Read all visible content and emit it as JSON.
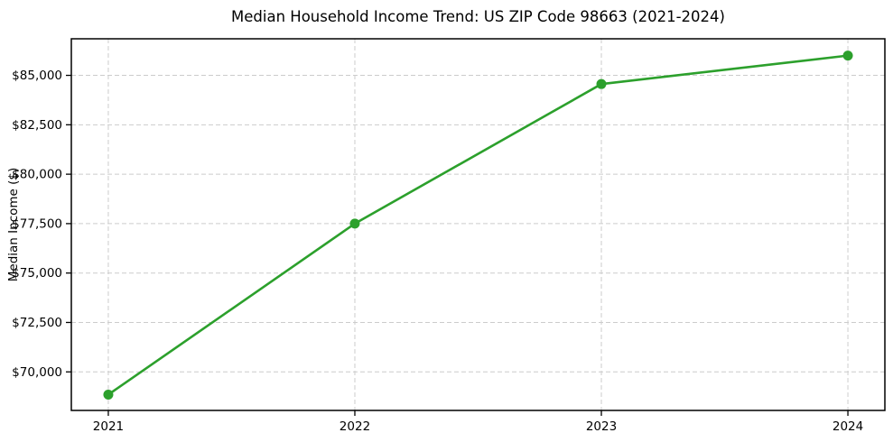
{
  "chart_data": {
    "type": "line",
    "title": "Median Household Income Trend: US ZIP Code 98663 (2021-2024)",
    "xlabel": "",
    "ylabel": "Median Income ($)",
    "x": [
      2021,
      2022,
      2023,
      2024
    ],
    "x_tick_labels": [
      "2021",
      "2022",
      "2023",
      "2024"
    ],
    "y_ticks": [
      70000,
      72500,
      75000,
      77500,
      80000,
      82500,
      85000
    ],
    "y_tick_labels": [
      "$70,000",
      "$72,500",
      "$75,000",
      "$77,500",
      "$80,000",
      "$82,500",
      "$85,000"
    ],
    "series": [
      {
        "name": "median_household_income",
        "values": [
          68850,
          77500,
          84560,
          86000
        ]
      }
    ],
    "xlim": [
      2020.85,
      2024.15
    ],
    "ylim": [
      68050,
      86850
    ],
    "grid": "dashed",
    "legend_position": "none",
    "marker": "circle",
    "colors": {
      "line": "#2ca02c",
      "marker": "#2ca02c",
      "grid": "#cccccc",
      "spine": "#000000",
      "text": "#000000",
      "background": "#ffffff"
    }
  }
}
